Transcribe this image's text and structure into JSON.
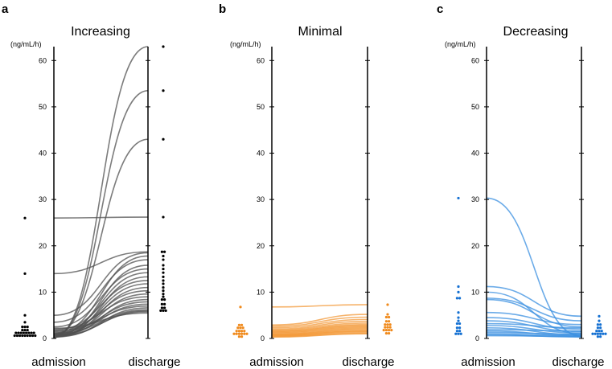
{
  "chart_data": [
    {
      "type": "line",
      "panel_letter": "a",
      "title": "Increasing",
      "ylabel": "(ng/mL/h)",
      "categories": [
        "admission",
        "discharge"
      ],
      "ylim": [
        0,
        63
      ],
      "yticks": [
        0,
        10,
        20,
        30,
        40,
        50,
        60
      ],
      "color": "#000000",
      "line_color": "#505050",
      "series": [
        {
          "values": [
            0.2,
            63.0
          ]
        },
        {
          "values": [
            0.5,
            53.5
          ]
        },
        {
          "values": [
            0.8,
            43.0
          ]
        },
        {
          "values": [
            26.0,
            26.2
          ]
        },
        {
          "values": [
            14.0,
            18.7
          ]
        },
        {
          "values": [
            5.0,
            18.5
          ]
        },
        {
          "values": [
            1.2,
            17.8
          ]
        },
        {
          "values": [
            3.5,
            17.0
          ]
        },
        {
          "values": [
            0.6,
            15.8
          ]
        },
        {
          "values": [
            2.5,
            15.0
          ]
        },
        {
          "values": [
            1.0,
            14.2
          ]
        },
        {
          "values": [
            0.3,
            13.3
          ]
        },
        {
          "values": [
            1.8,
            12.5
          ]
        },
        {
          "values": [
            0.9,
            11.8
          ]
        },
        {
          "values": [
            0.4,
            11.0
          ]
        },
        {
          "values": [
            1.5,
            10.3
          ]
        },
        {
          "values": [
            0.7,
            9.6
          ]
        },
        {
          "values": [
            2.0,
            9.0
          ]
        },
        {
          "values": [
            0.5,
            8.4
          ]
        },
        {
          "values": [
            1.2,
            7.9
          ]
        },
        {
          "values": [
            0.8,
            7.4
          ]
        },
        {
          "values": [
            1.6,
            7.0
          ]
        },
        {
          "values": [
            0.3,
            6.6
          ]
        },
        {
          "values": [
            1.0,
            6.2
          ]
        },
        {
          "values": [
            0.6,
            5.8
          ]
        },
        {
          "values": [
            2.2,
            5.5
          ]
        },
        {
          "values": [
            0.4,
            6.0
          ]
        }
      ]
    },
    {
      "type": "line",
      "panel_letter": "b",
      "title": "Minimal",
      "ylabel": "(ng/mL/h)",
      "categories": [
        "admission",
        "discharge"
      ],
      "ylim": [
        0,
        63
      ],
      "yticks": [
        0,
        10,
        20,
        30,
        40,
        50,
        60
      ],
      "color": "#f08a1c",
      "line_color": "#f39a3a",
      "series": [
        {
          "values": [
            6.8,
            7.3
          ]
        },
        {
          "values": [
            2.9,
            5.2
          ]
        },
        {
          "values": [
            2.6,
            4.6
          ]
        },
        {
          "values": [
            2.3,
            4.1
          ]
        },
        {
          "values": [
            2.0,
            3.7
          ]
        },
        {
          "values": [
            1.8,
            3.3
          ]
        },
        {
          "values": [
            1.6,
            3.0
          ]
        },
        {
          "values": [
            1.5,
            2.8
          ]
        },
        {
          "values": [
            1.3,
            2.6
          ]
        },
        {
          "values": [
            1.2,
            2.4
          ]
        },
        {
          "values": [
            1.0,
            2.2
          ]
        },
        {
          "values": [
            0.9,
            2.0
          ]
        },
        {
          "values": [
            0.8,
            1.8
          ]
        },
        {
          "values": [
            0.7,
            1.6
          ]
        },
        {
          "values": [
            0.6,
            1.5
          ]
        },
        {
          "values": [
            0.5,
            1.3
          ]
        },
        {
          "values": [
            0.4,
            1.1
          ]
        },
        {
          "values": [
            0.3,
            1.0
          ]
        }
      ]
    },
    {
      "type": "line",
      "panel_letter": "c",
      "title": "Decreasing",
      "ylabel": "(ng/mL/h)",
      "categories": [
        "admission",
        "discharge"
      ],
      "ylim": [
        0,
        63
      ],
      "yticks": [
        0,
        10,
        20,
        30,
        40,
        50,
        60
      ],
      "color": "#1470d2",
      "line_color": "#3a8fe0",
      "series": [
        {
          "values": [
            30.3,
            0.5
          ]
        },
        {
          "values": [
            11.2,
            4.8
          ]
        },
        {
          "values": [
            10.0,
            1.0
          ]
        },
        {
          "values": [
            8.7,
            3.8
          ]
        },
        {
          "values": [
            8.4,
            2.5
          ]
        },
        {
          "values": [
            5.6,
            3.0
          ]
        },
        {
          "values": [
            4.5,
            2.0
          ]
        },
        {
          "values": [
            3.8,
            1.5
          ]
        },
        {
          "values": [
            3.2,
            2.3
          ]
        },
        {
          "values": [
            2.8,
            1.2
          ]
        },
        {
          "values": [
            2.3,
            0.8
          ]
        },
        {
          "values": [
            1.9,
            1.6
          ]
        },
        {
          "values": [
            1.6,
            0.6
          ]
        },
        {
          "values": [
            1.3,
            0.9
          ]
        },
        {
          "values": [
            1.0,
            0.5
          ]
        },
        {
          "values": [
            0.8,
            0.3
          ]
        },
        {
          "values": [
            0.6,
            0.4
          ]
        }
      ]
    }
  ]
}
